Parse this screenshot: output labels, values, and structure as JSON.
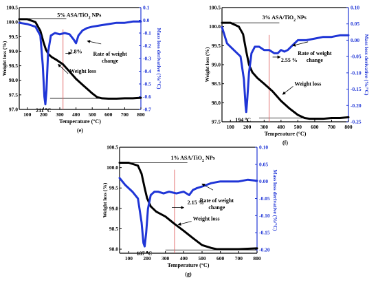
{
  "chart_data": [
    {
      "type": "line",
      "panel_label": "(e)",
      "title_main": "5% ASA/TiO",
      "title_sub": "2",
      "title_tail": " NPs",
      "xlabel": "Temperature (°C)",
      "ylabel_left": "Weight loss (%)",
      "ylabel_right": "Mass loss derivative (%/°C)",
      "xlim": [
        50,
        800
      ],
      "ylim_left": [
        97.0,
        100.5
      ],
      "ylim_right": [
        -0.7,
        0.1
      ],
      "x_ticks": [
        100,
        200,
        300,
        400,
        500,
        600,
        700,
        800
      ],
      "y_left_ticks": [
        97.0,
        97.5,
        98.0,
        98.5,
        99.0,
        99.5,
        100.0,
        100.5
      ],
      "y_right_ticks": [
        0.1,
        0.0,
        -0.1,
        -0.2,
        -0.3,
        -0.4,
        -0.5,
        -0.6,
        -0.7
      ],
      "y_left_labels": [
        "97.0",
        "97.5",
        "98.0",
        "98.5",
        "99.0",
        "99.5",
        "100.0",
        "100.5"
      ],
      "y_right_labels": [
        "0.1",
        "0.0",
        "-0.1",
        "-0.2",
        "-0.3",
        "-0.4",
        "-0.5",
        "-0.6",
        "-0.7"
      ],
      "series": [
        {
          "name": "Weight loss",
          "axis": "left",
          "color": "#000000",
          "x": [
            50,
            100,
            150,
            180,
            200,
            215,
            230,
            250,
            280,
            320,
            360,
            400,
            450,
            500,
            530,
            560,
            600,
            650,
            700,
            750,
            800
          ],
          "y": [
            100.1,
            100.1,
            100.0,
            99.7,
            99.3,
            99.05,
            98.9,
            98.8,
            98.7,
            98.55,
            98.3,
            98.05,
            97.8,
            97.55,
            97.42,
            97.38,
            97.37,
            97.37,
            97.38,
            97.38,
            97.4
          ]
        },
        {
          "name": "Rate of weight change",
          "axis": "right",
          "color": "#1f35d6",
          "x": [
            50,
            100,
            150,
            180,
            195,
            205,
            211,
            218,
            228,
            245,
            270,
            300,
            330,
            360,
            385,
            400,
            415,
            440,
            470,
            500,
            550,
            600,
            650,
            700,
            750,
            800
          ],
          "y": [
            -0.02,
            -0.03,
            -0.05,
            -0.12,
            -0.35,
            -0.6,
            -0.66,
            -0.55,
            -0.25,
            -0.12,
            -0.1,
            -0.11,
            -0.1,
            -0.11,
            -0.15,
            -0.18,
            -0.12,
            -0.08,
            -0.06,
            -0.05,
            -0.04,
            -0.03,
            -0.02,
            -0.02,
            -0.01,
            -0.01
          ]
        }
      ],
      "annotations": {
        "peak_value": "211",
        "peak_unit": "°C",
        "percent_text": "2.8%",
        "weight_loss_label": "Weight loss",
        "rate_label_1": "Rate of weight",
        "rate_label_2": "change"
      }
    },
    {
      "type": "line",
      "panel_label": "(f)",
      "title_main": "3% ASA/TiO",
      "title_sub": "2",
      "title_tail": " NPs",
      "xlabel": "Temperature (°C)",
      "ylabel_left": "Weight loss (%)",
      "ylabel_right": "Mass loss derivative (%/°C)",
      "xlim": [
        50,
        800
      ],
      "ylim_left": [
        97.5,
        100.5
      ],
      "ylim_right": [
        -0.25,
        0.1
      ],
      "x_ticks": [
        100,
        200,
        300,
        400,
        500,
        600,
        700,
        800
      ],
      "y_left_ticks": [
        97.5,
        98.0,
        98.5,
        99.0,
        99.5,
        100.0,
        100.5
      ],
      "y_right_ticks": [
        0.1,
        0.05,
        0.0,
        -0.05,
        -0.1,
        -0.15,
        -0.2,
        -0.25
      ],
      "y_left_labels": [
        "97.5",
        "98.0",
        "98.5",
        "99.0",
        "99.5",
        "100.0",
        "100.5"
      ],
      "y_right_labels": [
        "0.10",
        "0.05",
        "0.00",
        "-0.05",
        "-0.10",
        "-0.15",
        "-0.20",
        "-0.25"
      ],
      "series": [
        {
          "name": "Weight loss",
          "axis": "left",
          "color": "#000000",
          "x": [
            50,
            100,
            150,
            175,
            194,
            210,
            230,
            260,
            300,
            350,
            400,
            450,
            500,
            540,
            570,
            600,
            650,
            700,
            750,
            800
          ],
          "y": [
            100.1,
            100.1,
            100.0,
            99.8,
            99.35,
            99.0,
            98.8,
            98.65,
            98.5,
            98.3,
            98.05,
            97.85,
            97.68,
            97.6,
            97.58,
            97.58,
            97.58,
            97.6,
            97.6,
            97.62
          ]
        },
        {
          "name": "Rate of weight change",
          "axis": "right",
          "color": "#1f35d6",
          "x": [
            50,
            80,
            120,
            160,
            180,
            190,
            194,
            200,
            210,
            225,
            245,
            270,
            300,
            330,
            360,
            380,
            400,
            420,
            440,
            470,
            500,
            550,
            600,
            650,
            700,
            750,
            800
          ],
          "y": [
            0.04,
            -0.01,
            -0.03,
            -0.05,
            -0.12,
            -0.2,
            -0.22,
            -0.18,
            -0.1,
            -0.04,
            -0.02,
            -0.02,
            -0.03,
            -0.03,
            -0.04,
            -0.04,
            -0.03,
            -0.035,
            -0.03,
            -0.015,
            0.0,
            0.0,
            0.005,
            0.01,
            0.01,
            0.015,
            0.015
          ]
        }
      ],
      "annotations": {
        "peak_value": "194",
        "peak_unit": "°C",
        "percent_text": "2.55 %",
        "weight_loss_label": "Weight loss",
        "rate_label_1": "Rate of weight",
        "rate_label_2": "change"
      }
    },
    {
      "type": "line",
      "panel_label": "(g)",
      "title_main": "1% ASA/TiO",
      "title_sub": "2",
      "title_tail": " NPs",
      "xlabel": "Temperature (°C)",
      "ylabel_left": "Weight loss (%)",
      "ylabel_right": "Mass loss derivative (%/°C)",
      "xlim": [
        50,
        800
      ],
      "ylim_left": [
        97.9,
        100.5
      ],
      "ylim_right": [
        -0.21,
        0.1
      ],
      "x_ticks": [
        100,
        200,
        300,
        400,
        500,
        600,
        700,
        800
      ],
      "y_left_ticks": [
        98.0,
        98.5,
        99.0,
        99.5,
        100.0,
        100.5
      ],
      "y_right_ticks": [
        0.1,
        0.05,
        0.0,
        -0.05,
        -0.1,
        -0.15,
        -0.2
      ],
      "y_left_labels": [
        "98.0",
        "98.5",
        "99.0",
        "99.5",
        "100.0",
        "100.5"
      ],
      "y_right_labels": [
        "0.10",
        "0.05",
        "0.00",
        "-0.05",
        "-0.10",
        "-0.15",
        "-0.20"
      ],
      "series": [
        {
          "name": "Weight loss",
          "axis": "left",
          "color": "#000000",
          "x": [
            50,
            100,
            150,
            170,
            187,
            200,
            220,
            250,
            300,
            350,
            400,
            450,
            500,
            550,
            580,
            600,
            650,
            700,
            750,
            800
          ],
          "y": [
            100.12,
            100.12,
            100.05,
            99.85,
            99.5,
            99.25,
            99.05,
            98.92,
            98.8,
            98.62,
            98.45,
            98.27,
            98.1,
            98.03,
            98.0,
            98.0,
            98.0,
            98.0,
            98.01,
            98.02
          ]
        },
        {
          "name": "Rate of weight change",
          "axis": "right",
          "color": "#1f35d6",
          "x": [
            50,
            80,
            120,
            150,
            170,
            180,
            187,
            195,
            205,
            220,
            240,
            260,
            290,
            320,
            360,
            400,
            430,
            450,
            470,
            500,
            550,
            600,
            650,
            700,
            750,
            800
          ],
          "y": [
            0.01,
            -0.01,
            -0.03,
            -0.05,
            -0.12,
            -0.18,
            -0.19,
            -0.15,
            -0.08,
            -0.04,
            -0.03,
            -0.03,
            -0.035,
            -0.03,
            -0.035,
            -0.03,
            -0.04,
            -0.025,
            -0.02,
            -0.015,
            -0.005,
            0.0,
            0.0,
            0.0,
            0.005,
            0.002
          ]
        }
      ],
      "annotations": {
        "peak_value": "187",
        "peak_unit": "°C",
        "percent_text": "2.15 %",
        "weight_loss_label": "Weight loss",
        "rate_label_1": "Rate of weight",
        "rate_label_2": "change"
      }
    }
  ]
}
